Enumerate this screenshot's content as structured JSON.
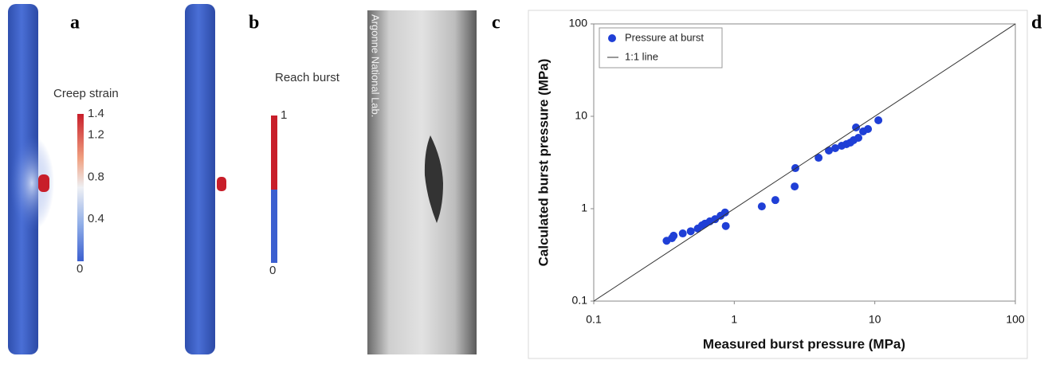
{
  "panels": [
    {
      "label": "a",
      "colorbar": {
        "title": "Creep strain",
        "range": [
          0,
          1.4
        ],
        "ticks": [
          0,
          0.4,
          0.8,
          1.2,
          1.4
        ]
      }
    },
    {
      "label": "b",
      "colorbar": {
        "title": "Reach burst",
        "range": [
          0,
          1
        ],
        "ticks": [
          0,
          1
        ]
      }
    },
    {
      "label": "c",
      "watermark": "Argonne National Lab."
    }
  ],
  "chart_data": {
    "type": "scatter",
    "label": "d",
    "xlabel": "Measured burst pressure (MPa)",
    "ylabel": "Calculated burst pressure (MPa)",
    "xscale": "log",
    "yscale": "log",
    "xlim": [
      0.1,
      100
    ],
    "ylim": [
      0.1,
      100
    ],
    "xticks": [
      0.1,
      1,
      10,
      100
    ],
    "yticks": [
      0.1,
      1,
      10,
      100
    ],
    "grid": false,
    "legend": "upper left",
    "series": [
      {
        "name": "Pressure at burst",
        "color": "#1f3fd6",
        "x": [
          0.33,
          0.36,
          0.37,
          0.43,
          0.49,
          0.55,
          0.59,
          0.62,
          0.67,
          0.73,
          0.8,
          0.86,
          0.87,
          1.57,
          1.96,
          2.69,
          2.72,
          3.98,
          4.71,
          5.23,
          5.81,
          6.28,
          6.7,
          7.06,
          7.35,
          7.64,
          8.26,
          8.94,
          10.6
        ],
        "values": [
          0.45,
          0.48,
          0.51,
          0.54,
          0.57,
          0.61,
          0.66,
          0.69,
          0.73,
          0.77,
          0.84,
          0.91,
          0.65,
          1.06,
          1.24,
          1.74,
          2.75,
          3.56,
          4.26,
          4.52,
          4.8,
          4.99,
          5.2,
          5.51,
          7.57,
          5.85,
          6.86,
          7.28,
          9.06
        ]
      },
      {
        "name": "1:1 line",
        "color": "#333333",
        "type": "line",
        "x": [
          0.1,
          100
        ],
        "values": [
          0.1,
          100
        ]
      }
    ]
  }
}
